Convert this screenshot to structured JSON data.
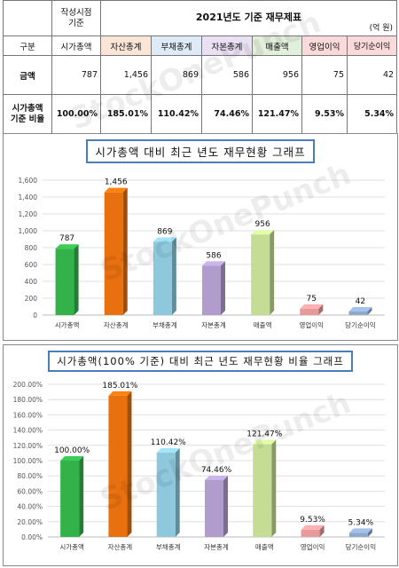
{
  "table": {
    "basis_label": "작성시점\n기준",
    "title": "2021년도 기준 재무제표",
    "unit": "(억 원)",
    "header_label": "구분",
    "columns": [
      "시가총액",
      "자산총계",
      "부채총계",
      "자본총계",
      "매출액",
      "영업이익",
      "당기순이익"
    ],
    "amount_label": "금액",
    "amounts": [
      "787",
      "1,456",
      "869",
      "586",
      "956",
      "75",
      "42"
    ],
    "ratio_label": "시가총액\n기준 비율",
    "ratios": [
      "100.00%",
      "185.01%",
      "110.42%",
      "74.46%",
      "121.47%",
      "9.53%",
      "5.34%"
    ]
  },
  "watermark": "StockOnePunch",
  "colors": {
    "green": "#33b24a",
    "orange": "#e8700f",
    "lightblue": "#8dc8dc",
    "lavender": "#b09dcc",
    "lightgreen": "#c4dc94",
    "pink": "#e69a9a",
    "steelblue": "#8fa9cc",
    "title_border": "#4a7ebb"
  },
  "chart_data": [
    {
      "type": "bar",
      "title": "시가총액 대비 최근 년도 재무현황 그래프",
      "categories": [
        "시가총액",
        "자산총계",
        "부채총계",
        "자본총계",
        "매출액",
        "영업이익",
        "당기순이익"
      ],
      "values": [
        787,
        1456,
        869,
        586,
        956,
        75,
        42
      ],
      "data_labels": [
        "787",
        "1,456",
        "869",
        "586",
        "956",
        "75",
        "42"
      ],
      "ylim": [
        0,
        1600
      ],
      "yticks": [
        "0",
        "200",
        "400",
        "600",
        "800",
        "1,000",
        "1,200",
        "1,400",
        "1,600"
      ],
      "grid": true
    },
    {
      "type": "bar",
      "title": "시가총액(100% 기준) 대비 최근 년도 재무현황 비율 그래프",
      "categories": [
        "시가총액",
        "자산총계",
        "부채총계",
        "자본총계",
        "매출액",
        "영업이익",
        "당기순이익"
      ],
      "values": [
        100.0,
        185.01,
        110.42,
        74.46,
        121.47,
        9.53,
        5.34
      ],
      "data_labels": [
        "100.00%",
        "185.01%",
        "110.42%",
        "74.46%",
        "121.47%",
        "9.53%",
        "5.34%"
      ],
      "ylim": [
        0,
        200
      ],
      "yticks": [
        "0.00%",
        "20.00%",
        "40.00%",
        "60.00%",
        "80.00%",
        "100.00%",
        "120.00%",
        "140.00%",
        "160.00%",
        "180.00%",
        "200.00%"
      ],
      "grid": true
    }
  ]
}
